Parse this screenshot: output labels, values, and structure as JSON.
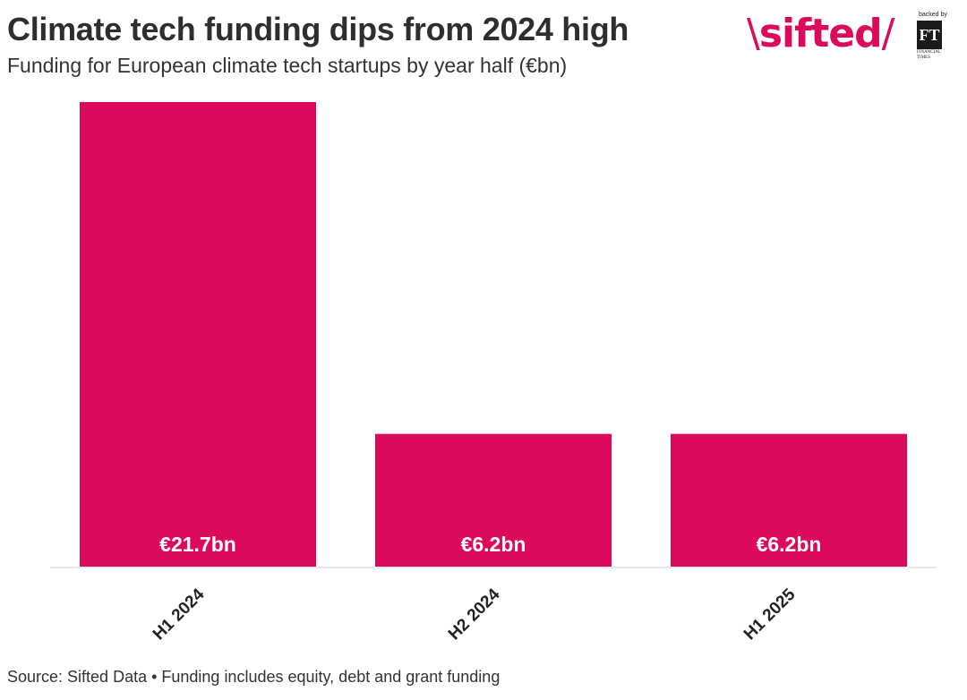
{
  "header": {
    "title": "Climate tech funding dips from 2024 high",
    "subtitle": "Funding for European climate tech startups by year half (€bn)"
  },
  "logo": {
    "brand": "sifted",
    "backed_by": "backed by",
    "ft_mark": "FT",
    "ft_name": "FINANCIAL TIMES"
  },
  "colors": {
    "bar": "#DC0A5B",
    "baseline": "#e8e8ee",
    "label_text": "#ffffff",
    "tick_text": "#222222"
  },
  "chart_data": {
    "type": "bar",
    "categories": [
      "H1 2024",
      "H2 2024",
      "H1 2025"
    ],
    "values": [
      21.7,
      6.2,
      6.2
    ],
    "data_labels": [
      "€21.7bn",
      "€6.2bn",
      "€6.2bn"
    ],
    "title": "Climate tech funding dips from 2024 high",
    "subtitle": "Funding for European climate tech startups by year half (€bn)",
    "xlabel": "",
    "ylabel": "",
    "grid": false,
    "legend": "none",
    "tick_rotation_deg": -45
  },
  "footer": {
    "source": "Source: Sifted Data • Funding includes equity, debt and grant funding"
  }
}
